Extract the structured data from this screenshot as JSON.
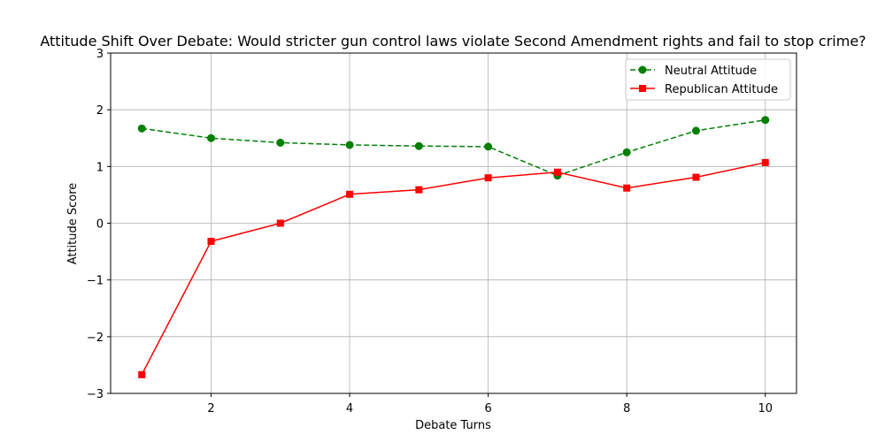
{
  "chart_data": {
    "type": "line",
    "title": "Attitude Shift Over Debate: Would stricter gun control laws violate Second Amendment rights and fail to stop crime?",
    "xlabel": "Debate Turns",
    "ylabel": "Attitude Score",
    "xlim": [
      0.55,
      10.45
    ],
    "ylim": [
      -3,
      3
    ],
    "xticks": [
      2,
      4,
      6,
      8,
      10
    ],
    "xtick_labels": [
      "2",
      "4",
      "6",
      "8",
      "10"
    ],
    "yticks": [
      -3,
      -2,
      -1,
      0,
      1,
      2,
      3
    ],
    "ytick_labels": [
      "−3",
      "−2",
      "−1",
      "0",
      "1",
      "2",
      "3"
    ],
    "grid": true,
    "legend_position": "top-right",
    "x": [
      1,
      2,
      3,
      4,
      5,
      6,
      7,
      8,
      9,
      10
    ],
    "series": [
      {
        "name": "Neutral Attitude",
        "color": "#008000",
        "line_style": "dashed",
        "marker": "circle",
        "values": [
          1.67,
          1.5,
          1.42,
          1.38,
          1.36,
          1.35,
          0.84,
          1.25,
          1.63,
          1.82
        ]
      },
      {
        "name": "Republican Attitude",
        "color": "#ff0000",
        "line_style": "solid",
        "marker": "square",
        "values": [
          -2.67,
          -0.32,
          0.0,
          0.51,
          0.59,
          0.8,
          0.9,
          0.62,
          0.81,
          1.07
        ]
      }
    ]
  }
}
